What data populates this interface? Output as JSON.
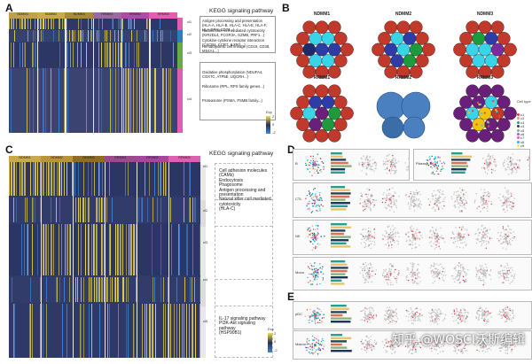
{
  "panels": {
    "a": {
      "letter": "A",
      "kegg_title": "KEGG signaling pathway",
      "column_headers": [
        "NDMM1",
        "NDMM2",
        "NDMM3",
        "RRMM1",
        "RRMM2",
        "RRMM3"
      ],
      "header_colors": [
        "#c0a050",
        "#c9a84e",
        "#a88a3a",
        "#9b6aa0",
        "#a84fa6",
        "#e15fb0"
      ],
      "cluster_labels": [
        "cl1",
        "cl2",
        "cl3",
        "cl4"
      ],
      "pathway_texts": [
        "Antigen processing and presentation (HLA-A, HLA-B, HLA-C, HLA-E, HLA-F, HLA-DRA, CD74...)",
        "Natural killer cell mediated cytotoxicity (KIR2DL4, FCGR3A, GZMB, PRF1...)",
        "Cytokine-cytokine receptor interaction (CXCR4, CCR7, IL2RG...)",
        "Hematopoietic cell lineage (CD19, CD38, MS4A1...)",
        "Oxidative phosphorylation (NDUFA4, COX7C, ATP5E, UQCRH...)",
        "Ribosome (RPL, RPS family genes...)",
        "Proteasome (PSMA, PSMB family...)"
      ],
      "legend_title": "Exp",
      "legend_ticks": [
        "2",
        "0",
        "-2"
      ]
    },
    "b": {
      "letter": "B",
      "titles": [
        "NDMM1",
        "NDMM2",
        "NDMM3",
        "RRMM1",
        "RRMM2",
        "RRMM3"
      ],
      "legend_title": "Cell type",
      "legend_items": [
        "c1",
        "c2",
        "c3",
        "c4",
        "c5",
        "c6",
        "c7",
        "c8",
        "c9"
      ],
      "legend_colors": [
        "#e63946",
        "#f4a261",
        "#2a9d8f",
        "#264653",
        "#8ab17d",
        "#9b5de5",
        "#f15bb5",
        "#00bbf9",
        "#fee440"
      ]
    },
    "c": {
      "letter": "C",
      "kegg_title": "KEGG signaling pathway",
      "column_headers": [
        "NDMM1",
        "NDMM2",
        "NDMM3",
        "RRMM1",
        "RRMM2",
        "RRMM3"
      ],
      "header_colors": [
        "#c9a84e",
        "#b99438",
        "#8f6d22",
        "#9b4b8c",
        "#a8459e",
        "#e15fb0"
      ],
      "cluster_labels": [
        "cl1",
        "cl2",
        "cl3",
        "cl4",
        "cl5"
      ],
      "pathway_block1": [
        "Cell adhesion molecules (CAMs)",
        "Endocytosis",
        "Phagosome",
        "Antigen processing and presentation",
        "Natural killer cell mediated cytotoxicity",
        "(HLA-C)"
      ],
      "pathway_block2": [
        "IL-17 signaling pathway",
        "PI3K-Akt signaling pathway",
        "(HSP90B1)"
      ],
      "legend_title": "Exp",
      "legend_ticks": [
        "2",
        "0",
        "-2"
      ]
    },
    "d": {
      "letter": "D",
      "row_labels": [
        "B",
        "Plasma",
        "CTL",
        "NK",
        "Mono"
      ]
    },
    "e": {
      "letter": "E",
      "row_labels": [
        "pDC",
        "Macro"
      ]
    }
  },
  "watermark": "知乎 @WOSCI沃斯编辑"
}
